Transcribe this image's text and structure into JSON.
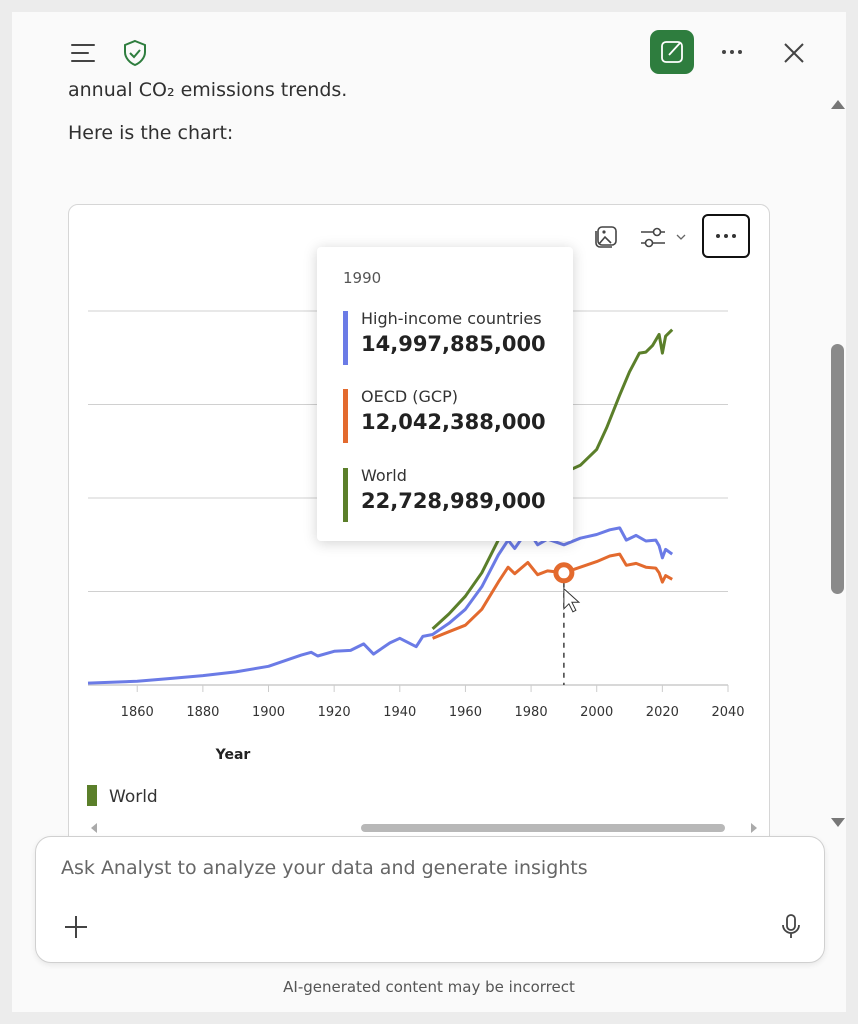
{
  "header": {
    "menu_icon": "hamburger-icon",
    "shield_icon": "shield-check-icon",
    "new_chat_icon": "compose-icon",
    "more_icon": "more-icon",
    "close_icon": "close-icon",
    "accent": "#2e7d3e"
  },
  "prose": {
    "partial_line": "annual CO₂ emissions trends.",
    "intro": "Here is the chart:"
  },
  "chart_toolbar": {
    "image_icon": "image-icon",
    "settings_icon": "sliders-icon",
    "more_icon": "more-icon"
  },
  "tooltip": {
    "year": "1990",
    "items": [
      {
        "name": "High-income countries",
        "value": "14,997,885,000",
        "color": "#6b7be6"
      },
      {
        "name": "OECD (GCP)",
        "value": "12,042,388,000",
        "color": "#e36a2e"
      },
      {
        "name": "World",
        "value": "22,728,989,000",
        "color": "#5b7f2a"
      }
    ]
  },
  "chart_data": {
    "type": "line",
    "xlabel": "Year",
    "x_ticks": [
      "1860",
      "1880",
      "1900",
      "1920",
      "1940",
      "1960",
      "1980",
      "2000",
      "2020",
      "2040"
    ],
    "xlim": [
      1845,
      2040
    ],
    "ylim": [
      0,
      40000000000
    ],
    "grid": true,
    "hover_year": 1990,
    "legend": [
      {
        "name": "World",
        "color": "#5b7f2a"
      }
    ],
    "series": [
      {
        "name": "High-income countries",
        "color": "#6b7be6",
        "x": [
          1845,
          1860,
          1870,
          1880,
          1890,
          1900,
          1905,
          1910,
          1913,
          1915,
          1920,
          1925,
          1929,
          1932,
          1937,
          1940,
          1945,
          1947,
          1950,
          1955,
          1960,
          1965,
          1970,
          1973,
          1975,
          1979,
          1982,
          1985,
          1990,
          1995,
          2000,
          2004,
          2007,
          2009,
          2012,
          2015,
          2018,
          2019,
          2020,
          2021,
          2023
        ],
        "y": [
          0.2,
          0.4,
          0.7,
          1.0,
          1.4,
          2.0,
          2.6,
          3.2,
          3.5,
          3.1,
          3.6,
          3.7,
          4.4,
          3.3,
          4.5,
          5.0,
          4.1,
          5.2,
          5.4,
          6.6,
          8.1,
          10.5,
          13.9,
          15.5,
          14.6,
          16.6,
          15.0,
          15.6,
          15.0,
          15.7,
          16.1,
          16.6,
          16.8,
          15.5,
          16.0,
          15.4,
          15.5,
          14.9,
          13.6,
          14.5,
          14.0
        ]
      },
      {
        "name": "OECD (GCP)",
        "color": "#e36a2e",
        "x": [
          1950,
          1955,
          1960,
          1965,
          1970,
          1973,
          1975,
          1979,
          1982,
          1985,
          1990,
          1995,
          2000,
          2004,
          2007,
          2009,
          2012,
          2015,
          2018,
          2019,
          2020,
          2021,
          2023
        ],
        "y": [
          5.0,
          5.7,
          6.4,
          8.1,
          11.0,
          12.6,
          11.9,
          13.1,
          11.8,
          12.2,
          12.0,
          12.6,
          13.2,
          13.8,
          14.0,
          12.8,
          13.0,
          12.6,
          12.5,
          12.0,
          11.0,
          11.7,
          11.3
        ]
      },
      {
        "name": "World",
        "color": "#5b7f2a",
        "x": [
          1950,
          1955,
          1960,
          1965,
          1970,
          1975,
          1980,
          1985,
          1990,
          1995,
          2000,
          2003,
          2007,
          2010,
          2013,
          2015,
          2017,
          2019,
          2020,
          2021,
          2023
        ],
        "y": [
          6.0,
          7.6,
          9.5,
          12.0,
          15.5,
          17.5,
          20.5,
          21.0,
          22.7,
          23.5,
          25.2,
          27.5,
          31.0,
          33.5,
          35.5,
          35.6,
          36.3,
          37.5,
          35.5,
          37.3,
          38.0
        ]
      }
    ]
  },
  "input": {
    "placeholder": "Ask Analyst to analyze your data and generate insights",
    "add_icon": "plus-icon",
    "mic_icon": "microphone-icon"
  },
  "footer": "AI-generated content may be incorrect"
}
